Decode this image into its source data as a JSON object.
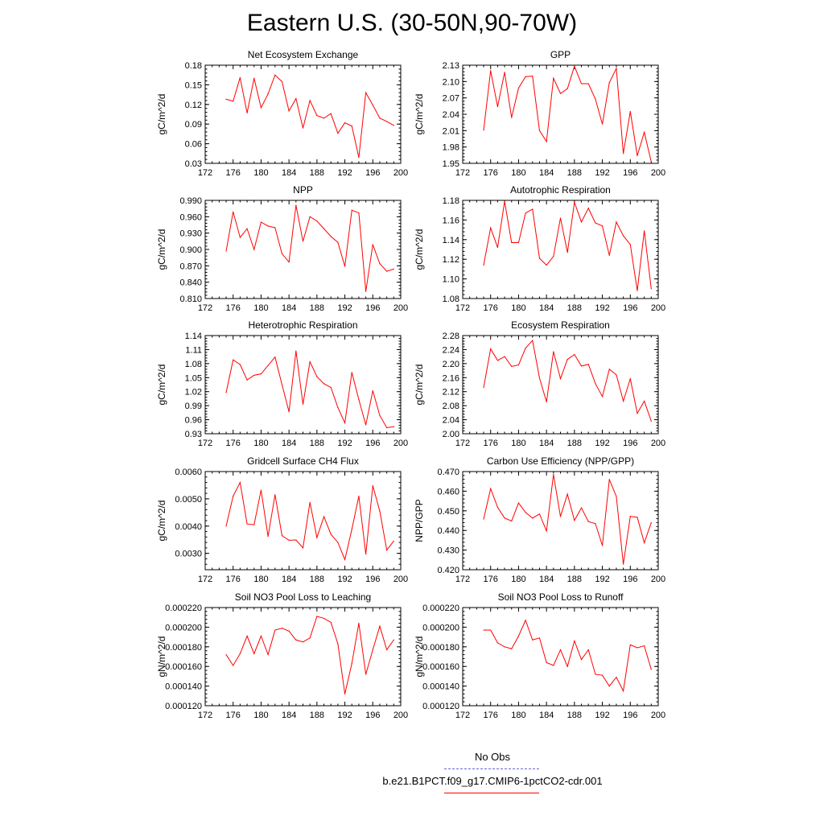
{
  "figure": {
    "title": "Eastern U.S. (30-50N,90-70W)"
  },
  "legend": {
    "entries": [
      {
        "label": "No Obs",
        "color": "#6666cc",
        "style": "dashed"
      },
      {
        "label": "b.e21.B1PCT.f09_g17.CMIP6-1pctCO2-cdr.001",
        "color": "#ff0000",
        "style": "solid"
      }
    ]
  },
  "chart_data": [
    {
      "type": "line",
      "title": "Net Ecosystem Exchange",
      "ylabel": "gC/m^2/d",
      "xlim": [
        172,
        200
      ],
      "xticks": [
        "172",
        "176",
        "180",
        "184",
        "188",
        "192",
        "196",
        "200"
      ],
      "ylim": [
        0.03,
        0.18
      ],
      "yticks": [
        "0.03",
        "0.06",
        "0.09",
        "0.12",
        "0.15",
        "0.18"
      ],
      "series": [
        {
          "color": "#ff0000",
          "x": [
            175,
            176,
            177,
            178,
            179,
            180,
            181,
            182,
            183,
            184,
            185,
            186,
            187,
            188,
            189,
            190,
            191,
            192,
            193,
            194,
            195,
            196,
            197,
            198,
            199
          ],
          "y": [
            0.128,
            0.125,
            0.161,
            0.107,
            0.16,
            0.115,
            0.136,
            0.165,
            0.155,
            0.11,
            0.129,
            0.084,
            0.126,
            0.103,
            0.099,
            0.106,
            0.076,
            0.092,
            0.087,
            0.039,
            0.138,
            0.119,
            0.099,
            0.094,
            0.088
          ]
        }
      ]
    },
    {
      "type": "line",
      "title": "GPP",
      "ylabel": "gC/m^2/d",
      "xlim": [
        172,
        200
      ],
      "xticks": [
        "172",
        "176",
        "180",
        "184",
        "188",
        "192",
        "196",
        "200"
      ],
      "ylim": [
        1.95,
        2.13
      ],
      "yticks": [
        "1.95",
        "1.98",
        "2.01",
        "2.04",
        "2.07",
        "2.10",
        "2.13"
      ],
      "series": [
        {
          "color": "#ff0000",
          "x": [
            175,
            176,
            177,
            178,
            179,
            180,
            181,
            182,
            183,
            184,
            185,
            186,
            187,
            188,
            189,
            190,
            191,
            192,
            193,
            194,
            195,
            196,
            197,
            198,
            199
          ],
          "y": [
            2.011,
            2.12,
            2.054,
            2.117,
            2.034,
            2.088,
            2.109,
            2.11,
            2.01,
            1.99,
            2.106,
            2.078,
            2.087,
            2.128,
            2.096,
            2.096,
            2.068,
            2.022,
            2.098,
            2.124,
            1.968,
            2.045,
            1.964,
            2.007,
            1.953
          ]
        }
      ]
    },
    {
      "type": "line",
      "title": "NPP",
      "ylabel": "gC/m^2/d",
      "xlim": [
        172,
        200
      ],
      "xticks": [
        "172",
        "176",
        "180",
        "184",
        "188",
        "192",
        "196",
        "200"
      ],
      "ylim": [
        0.81,
        0.99
      ],
      "yticks": [
        "0.810",
        "0.840",
        "0.870",
        "0.900",
        "0.930",
        "0.960",
        "0.990"
      ],
      "series": [
        {
          "color": "#ff0000",
          "x": [
            175,
            176,
            177,
            178,
            179,
            180,
            181,
            182,
            183,
            184,
            185,
            186,
            187,
            188,
            189,
            190,
            191,
            192,
            193,
            194,
            195,
            196,
            197,
            198,
            199
          ],
          "y": [
            0.897,
            0.969,
            0.922,
            0.938,
            0.9,
            0.95,
            0.943,
            0.94,
            0.892,
            0.877,
            0.981,
            0.915,
            0.96,
            0.952,
            0.938,
            0.924,
            0.913,
            0.869,
            0.972,
            0.967,
            0.823,
            0.909,
            0.874,
            0.86,
            0.864
          ]
        }
      ]
    },
    {
      "type": "line",
      "title": "Autotrophic Respiration",
      "ylabel": "gC/m^2/d",
      "xlim": [
        172,
        200
      ],
      "xticks": [
        "172",
        "176",
        "180",
        "184",
        "188",
        "192",
        "196",
        "200"
      ],
      "ylim": [
        1.08,
        1.18
      ],
      "yticks": [
        "1.08",
        "1.10",
        "1.12",
        "1.14",
        "1.16",
        "1.18"
      ],
      "series": [
        {
          "color": "#ff0000",
          "x": [
            175,
            176,
            177,
            178,
            179,
            180,
            181,
            182,
            183,
            184,
            185,
            186,
            187,
            188,
            189,
            190,
            191,
            192,
            193,
            194,
            195,
            196,
            197,
            198,
            199
          ],
          "y": [
            1.114,
            1.152,
            1.132,
            1.179,
            1.137,
            1.137,
            1.167,
            1.171,
            1.121,
            1.114,
            1.123,
            1.162,
            1.127,
            1.178,
            1.158,
            1.172,
            1.157,
            1.154,
            1.124,
            1.158,
            1.144,
            1.135,
            1.088,
            1.149,
            1.09
          ]
        }
      ]
    },
    {
      "type": "line",
      "title": "Heterotrophic Respiration",
      "ylabel": "gC/m^2/d",
      "xlim": [
        172,
        200
      ],
      "xticks": [
        "172",
        "176",
        "180",
        "184",
        "188",
        "192",
        "196",
        "200"
      ],
      "ylim": [
        0.93,
        1.14
      ],
      "yticks": [
        "0.93",
        "0.96",
        "0.99",
        "1.02",
        "1.05",
        "1.08",
        "1.11",
        "1.14"
      ],
      "series": [
        {
          "color": "#ff0000",
          "x": [
            175,
            176,
            177,
            178,
            179,
            180,
            181,
            182,
            183,
            184,
            185,
            186,
            187,
            188,
            189,
            190,
            191,
            192,
            193,
            194,
            195,
            196,
            197,
            198,
            199
          ],
          "y": [
            1.018,
            1.088,
            1.078,
            1.045,
            1.055,
            1.058,
            1.076,
            1.094,
            1.035,
            0.977,
            1.107,
            0.993,
            1.084,
            1.052,
            1.037,
            1.029,
            0.986,
            0.953,
            1.061,
            1.003,
            0.949,
            1.022,
            0.969,
            0.943,
            0.945
          ]
        }
      ]
    },
    {
      "type": "line",
      "title": "Ecosystem Respiration",
      "ylabel": "gC/m^2/d",
      "xlim": [
        172,
        200
      ],
      "xticks": [
        "172",
        "176",
        "180",
        "184",
        "188",
        "192",
        "196",
        "200"
      ],
      "ylim": [
        2.0,
        2.28
      ],
      "yticks": [
        "2.00",
        "2.04",
        "2.08",
        "2.12",
        "2.16",
        "2.20",
        "2.24",
        "2.28"
      ],
      "series": [
        {
          "color": "#ff0000",
          "x": [
            175,
            176,
            177,
            178,
            179,
            180,
            181,
            182,
            183,
            184,
            185,
            186,
            187,
            188,
            189,
            190,
            191,
            192,
            193,
            194,
            195,
            196,
            197,
            198,
            199
          ],
          "y": [
            2.132,
            2.242,
            2.209,
            2.22,
            2.192,
            2.196,
            2.244,
            2.266,
            2.159,
            2.091,
            2.234,
            2.157,
            2.212,
            2.226,
            2.193,
            2.198,
            2.143,
            2.106,
            2.184,
            2.168,
            2.093,
            2.157,
            2.058,
            2.093,
            2.036
          ]
        }
      ]
    },
    {
      "type": "line",
      "title": "Gridcell Surface CH4 Flux",
      "ylabel": "gC/m^2/d",
      "xlim": [
        172,
        200
      ],
      "xticks": [
        "172",
        "176",
        "180",
        "184",
        "188",
        "192",
        "196",
        "200"
      ],
      "ylim": [
        0.0024,
        0.006
      ],
      "yticks": [
        "0.0030",
        "0.0040",
        "0.0050",
        "0.0060"
      ],
      "series": [
        {
          "color": "#ff0000",
          "x": [
            175,
            176,
            177,
            178,
            179,
            180,
            181,
            182,
            183,
            184,
            185,
            186,
            187,
            188,
            189,
            190,
            191,
            192,
            193,
            194,
            195,
            196,
            197,
            198,
            199
          ],
          "y": [
            0.004,
            0.0051,
            0.0056,
            0.00408,
            0.00405,
            0.00532,
            0.00362,
            0.00515,
            0.00365,
            0.00348,
            0.00349,
            0.0032,
            0.00487,
            0.00358,
            0.00435,
            0.0037,
            0.0034,
            0.00277,
            0.00388,
            0.0051,
            0.00297,
            0.00548,
            0.00455,
            0.00312,
            0.00345
          ]
        }
      ]
    },
    {
      "type": "line",
      "title": "Carbon Use Efficiency (NPP/GPP)",
      "ylabel": "NPP/GPP",
      "xlim": [
        172,
        200
      ],
      "xticks": [
        "172",
        "176",
        "180",
        "184",
        "188",
        "192",
        "196",
        "200"
      ],
      "ylim": [
        0.42,
        0.47
      ],
      "yticks": [
        "0.420",
        "0.430",
        "0.440",
        "0.450",
        "0.460",
        "0.470"
      ],
      "series": [
        {
          "color": "#ff0000",
          "x": [
            175,
            176,
            177,
            178,
            179,
            180,
            181,
            182,
            183,
            184,
            185,
            186,
            187,
            188,
            189,
            190,
            191,
            192,
            193,
            194,
            195,
            196,
            197,
            198,
            199
          ],
          "y": [
            0.4458,
            0.4613,
            0.4518,
            0.4463,
            0.4448,
            0.454,
            0.4492,
            0.4463,
            0.4484,
            0.4397,
            0.4685,
            0.4471,
            0.4585,
            0.4451,
            0.4515,
            0.4445,
            0.4435,
            0.4323,
            0.466,
            0.4573,
            0.4228,
            0.4472,
            0.4467,
            0.4337,
            0.444
          ]
        }
      ]
    },
    {
      "type": "line",
      "title": "Soil NO3 Pool Loss to Leaching",
      "ylabel": "gN/m^2/d",
      "xlim": [
        172,
        200
      ],
      "xticks": [
        "172",
        "176",
        "180",
        "184",
        "188",
        "192",
        "196",
        "200"
      ],
      "ylim": [
        0.00012,
        0.00022
      ],
      "yticks": [
        "0.000120",
        "0.000140",
        "0.000160",
        "0.000180",
        "0.000200",
        "0.000220"
      ],
      "series": [
        {
          "color": "#ff0000",
          "x": [
            175,
            176,
            177,
            178,
            179,
            180,
            181,
            182,
            183,
            184,
            185,
            186,
            187,
            188,
            189,
            190,
            191,
            192,
            193,
            194,
            195,
            196,
            197,
            198,
            199
          ],
          "y": [
            0.000172,
            0.000161,
            0.000173,
            0.000191,
            0.000173,
            0.000191,
            0.000172,
            0.000197,
            0.000199,
            0.000196,
            0.000187,
            0.000185,
            0.000189,
            0.000211,
            0.000209,
            0.000205,
            0.000183,
            0.000132,
            0.000163,
            0.000204,
            0.000152,
            0.000177,
            0.000201,
            0.000177,
            0.000187
          ]
        }
      ]
    },
    {
      "type": "line",
      "title": "Soil NO3 Pool Loss to Runoff",
      "ylabel": "gN/m^2/d",
      "xlim": [
        172,
        200
      ],
      "xticks": [
        "172",
        "176",
        "180",
        "184",
        "188",
        "192",
        "196",
        "200"
      ],
      "ylim": [
        0.00012,
        0.00022
      ],
      "yticks": [
        "0.000120",
        "0.000140",
        "0.000160",
        "0.000180",
        "0.000200",
        "0.000220"
      ],
      "series": [
        {
          "color": "#ff0000",
          "x": [
            175,
            176,
            177,
            178,
            179,
            180,
            181,
            182,
            183,
            184,
            185,
            186,
            187,
            188,
            189,
            190,
            191,
            192,
            193,
            194,
            195,
            196,
            197,
            198,
            199
          ],
          "y": [
            0.000197,
            0.000197,
            0.000184,
            0.00018,
            0.000178,
            0.000191,
            0.000207,
            0.000187,
            0.000189,
            0.000164,
            0.000161,
            0.000177,
            0.00016,
            0.000186,
            0.000167,
            0.000177,
            0.000152,
            0.000151,
            0.00014,
            0.000149,
            0.000135,
            0.000182,
            0.000179,
            0.000181,
            0.000157
          ]
        }
      ]
    }
  ]
}
